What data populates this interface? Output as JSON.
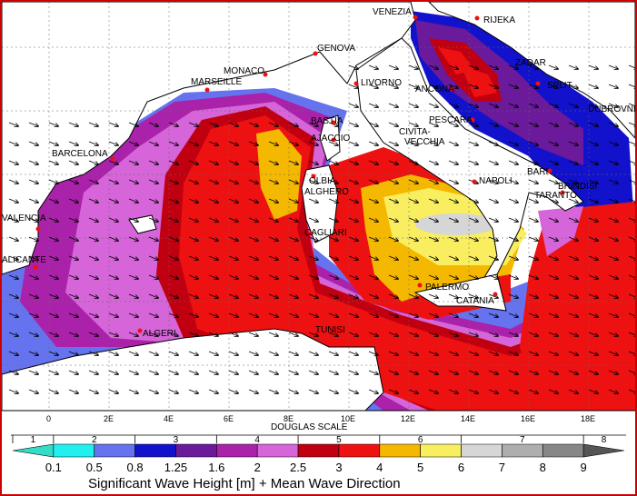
{
  "cities": [
    {
      "name": "VENEZIA"
    },
    {
      "name": "RIJEKA"
    },
    {
      "name": "GENOVA"
    },
    {
      "name": "MONACO"
    },
    {
      "name": "MARSEILLE"
    },
    {
      "name": "LIVORNO"
    },
    {
      "name": "ZADAR"
    },
    {
      "name": "SPLIT"
    },
    {
      "name": "ANCONA"
    },
    {
      "name": "DUBROVNIK"
    },
    {
      "name": "BASTIA"
    },
    {
      "name": "PESCARA"
    },
    {
      "name": "AJACCIO"
    },
    {
      "name": "CIVITA-"
    },
    {
      "name": "VECCHIA"
    },
    {
      "name": "BARCELONA"
    },
    {
      "name": "BARI"
    },
    {
      "name": "BRINDISI"
    },
    {
      "name": "NAPOLI"
    },
    {
      "name": "OLBIA"
    },
    {
      "name": "ALGHERO"
    },
    {
      "name": "TARANTO"
    },
    {
      "name": "VALENCIA"
    },
    {
      "name": "CAGLIARI"
    },
    {
      "name": "ALICANTE"
    },
    {
      "name": "PALERMO"
    },
    {
      "name": "CATANIA"
    },
    {
      "name": "TUNISI"
    },
    {
      "name": "ALGERI"
    }
  ],
  "longitude_labels": [
    "0",
    "2E",
    "4E",
    "6E",
    "8E",
    "10E",
    "12E",
    "14E",
    "16E",
    "18E"
  ],
  "legend": {
    "douglas_scale_label": "DOUGLAS SCALE",
    "douglas_values": [
      "1",
      "2",
      "3",
      "4",
      "5",
      "6",
      "7",
      "8"
    ],
    "thresholds": [
      "0.1",
      "0.5",
      "0.8",
      "1.25",
      "1.6",
      "2",
      "2.5",
      "3",
      "4",
      "5",
      "6",
      "7",
      "8",
      "9"
    ],
    "colors": [
      "#33dcc4",
      "#22f0f0",
      "#6673ee",
      "#1212cc",
      "#6a1a9a",
      "#aa22aa",
      "#d565d8",
      "#c00010",
      "#ee1111",
      "#f5b800",
      "#f8ee60",
      "#d6d6d6",
      "#aeaeae",
      "#878787",
      "#555555"
    ],
    "title": "Significant Wave Height [m] + Mean Wave Direction"
  }
}
